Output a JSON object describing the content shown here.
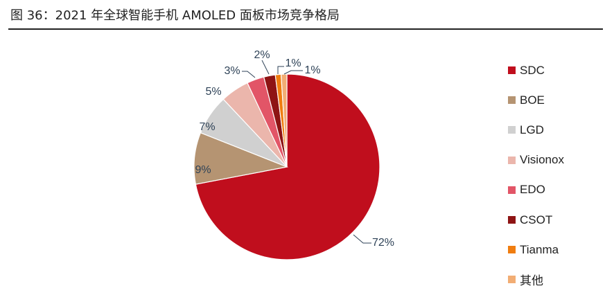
{
  "figure": {
    "title": "图 36：2021 年全球智能手机 AMOLED 面板市场竞争格局"
  },
  "chart_data": {
    "type": "pie",
    "title": "",
    "unit": "%",
    "categories": [
      "SDC",
      "BOE",
      "LGD",
      "Visionox",
      "EDO",
      "CSOT",
      "Tianma",
      "其他"
    ],
    "values": [
      72,
      9,
      7,
      5,
      3,
      2,
      1,
      1
    ],
    "labels": [
      "72%",
      "9%",
      "7%",
      "5%",
      "3%",
      "2%",
      "1%",
      "1%"
    ],
    "colors": [
      "#C00E1D",
      "#B59472",
      "#D0D0D0",
      "#EBB6AC",
      "#E25567",
      "#8E1414",
      "#F07D10",
      "#F2AD74"
    ],
    "start": "12 o'clock",
    "direction": "clockwise",
    "legend_position": "right"
  }
}
